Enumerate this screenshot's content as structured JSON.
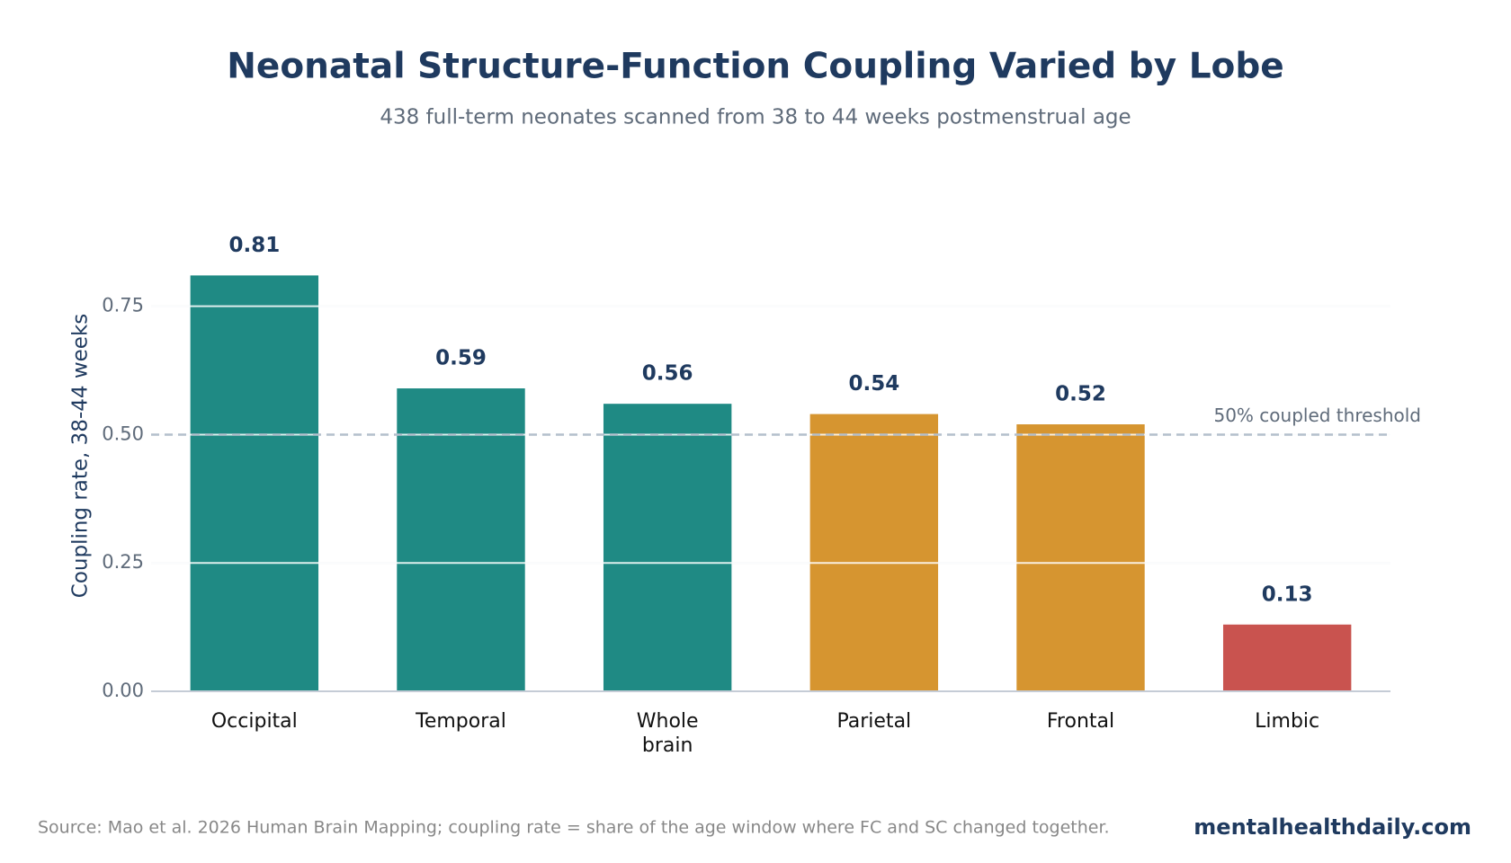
{
  "chart_data": {
    "type": "bar",
    "title": "Neonatal Structure-Function Coupling Varied by Lobe",
    "subtitle": "438 full-term neonates scanned from 38 to 44 weeks postmenstrual age",
    "y_label": "Coupling rate, 38-44 weeks",
    "categories": [
      "Occipital",
      "Temporal",
      "Whole brain",
      "Parietal",
      "Frontal",
      "Limbic"
    ],
    "values": [
      0.81,
      0.59,
      0.56,
      0.54,
      0.52,
      0.13
    ],
    "colors": [
      "#1f8a84",
      "#1f8a84",
      "#1f8a84",
      "#d69530",
      "#d69530",
      "#c9534f"
    ],
    "ylim": [
      0,
      0.9
    ],
    "yticks": [
      {
        "value": 0,
        "label": "0.00"
      },
      0.25,
      {
        "value": 0.5,
        "label": "0.50"
      },
      0.75
    ],
    "grid": true,
    "threshold": {
      "value": 0.5,
      "label": "50% coupled threshold"
    },
    "source": "Source: Mao et al. 2026 Human Brain Mapping; coupling rate = share of the age window where FC and SC changed together.",
    "brand": "mentalhealthdaily.com"
  }
}
